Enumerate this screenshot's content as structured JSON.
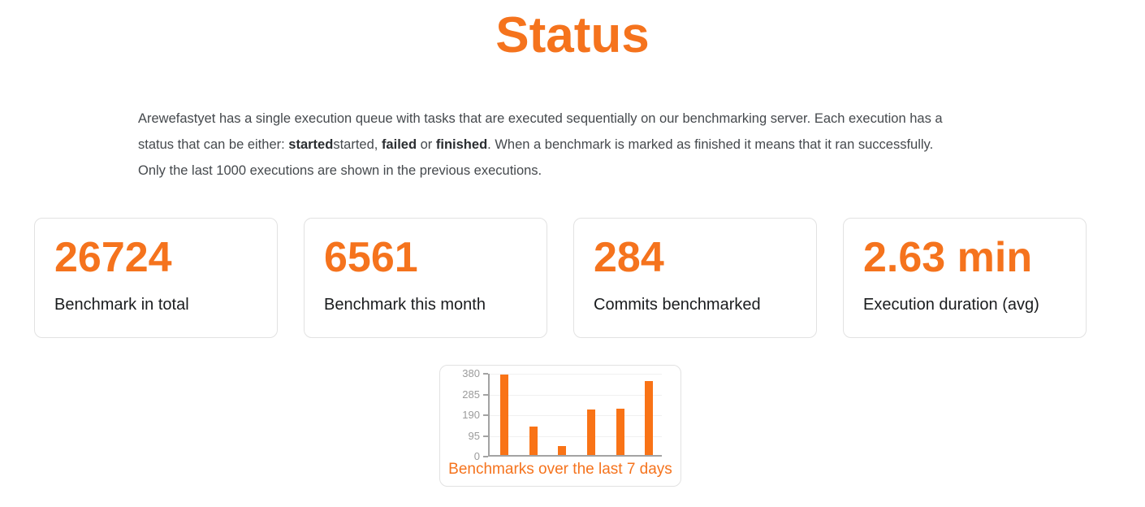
{
  "colors": {
    "primary": "#f5731d",
    "bar": "#f97316"
  },
  "page": {
    "title": "Status"
  },
  "description": {
    "lines": [
      [
        {
          "t": "Arewefastyet has a single execution queue with tasks that are executed sequentially on our benchmarking server. Each execution has a",
          "b": false
        }
      ],
      [
        {
          "t": "status that can be either: ",
          "b": false
        },
        {
          "t": "started",
          "b": true
        },
        {
          "t": "started, ",
          "b": false
        },
        {
          "t": "failed",
          "b": true
        },
        {
          "t": " or ",
          "b": false
        },
        {
          "t": "finished",
          "b": true
        },
        {
          "t": ". When a benchmark is marked as finished it means that it ran successfully.",
          "b": false
        }
      ],
      [
        {
          "t": "Only the last 1000 executions are shown in the previous executions.",
          "b": false
        }
      ]
    ]
  },
  "stats": [
    {
      "value": "26724",
      "label": "Benchmark in total"
    },
    {
      "value": "6561",
      "label": "Benchmark this month"
    },
    {
      "value": "284",
      "label": "Commits benchmarked"
    },
    {
      "value": "2.63 min",
      "label": "Execution duration (avg)"
    }
  ],
  "chart_data": {
    "type": "bar",
    "title": "Benchmarks over the last 7 days",
    "values": [
      370,
      130,
      40,
      208,
      213,
      340
    ],
    "y_ticks": [
      380,
      285,
      190,
      95,
      0
    ],
    "ylim": [
      0,
      380
    ],
    "x_tick_labels_visible": false,
    "legend": false,
    "grid": true,
    "bar_color": "#f97316",
    "axis_color": "#a3a3a3",
    "tick_label_color": "#9b9b9b"
  }
}
